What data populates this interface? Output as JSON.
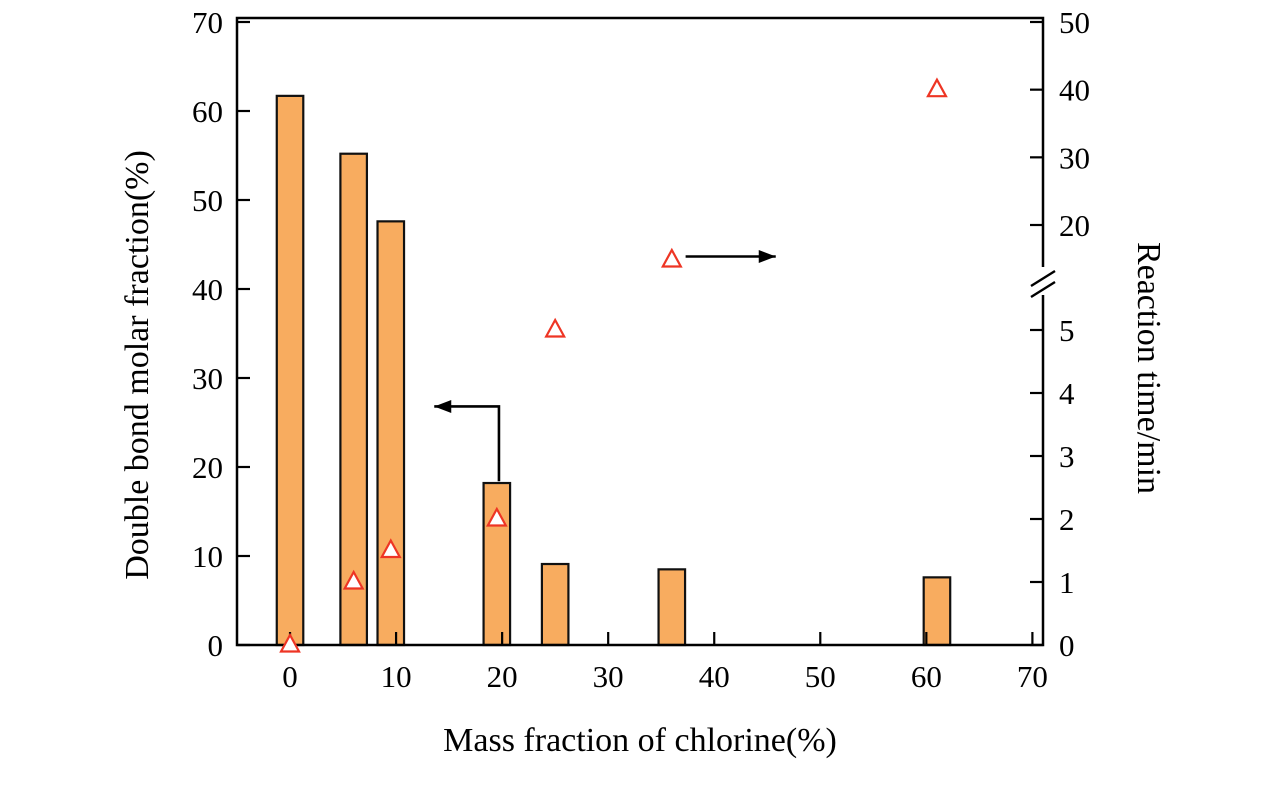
{
  "chart_data": {
    "type": "bar",
    "title": "",
    "xlabel": "Mass fraction of chlorine(%)",
    "ylabel_left": "Double bond molar fraction(%)",
    "ylabel_right": "Reaction time/min",
    "xlim": [
      -5,
      71
    ],
    "left_lim": [
      0,
      70
    ],
    "x_ticks": [
      0,
      10,
      20,
      30,
      40,
      50,
      60,
      70
    ],
    "left_ticks": [
      0,
      10,
      20,
      30,
      40,
      50,
      60,
      70
    ],
    "right_axis": {
      "broken": true,
      "lower_ticks": [
        0,
        1,
        2,
        3,
        4,
        5
      ],
      "upper_ticks": [
        20,
        30,
        40,
        50
      ]
    },
    "bar_width": 2.5,
    "series": [
      {
        "name": "Double bond molar fraction",
        "type": "bar",
        "axis": "left",
        "color": "#F8AC5F",
        "border": "#111111",
        "x": [
          0,
          6,
          9.5,
          19.5,
          25,
          36,
          61
        ],
        "values": [
          61.7,
          55.2,
          47.6,
          18.2,
          9.1,
          8.5,
          7.6
        ]
      },
      {
        "name": "Reaction time",
        "type": "scatter-triangle",
        "axis": "right",
        "color": "#EE3524",
        "x": [
          0,
          6,
          9.5,
          19.5,
          25,
          36,
          61
        ],
        "values": [
          0,
          1,
          1.5,
          2,
          5,
          15,
          40
        ]
      }
    ],
    "annotations": [
      {
        "name": "bars-to-left-axis-arrow",
        "axis": "left",
        "x": [
          19.7,
          19.7,
          13.6
        ],
        "y": [
          18.4,
          26.8,
          26.8
        ]
      },
      {
        "name": "triangles-to-right-axis-arrow",
        "axis": "right",
        "x": [
          37.3,
          45.8
        ],
        "y": [
          15.5,
          15.5
        ]
      }
    ]
  }
}
